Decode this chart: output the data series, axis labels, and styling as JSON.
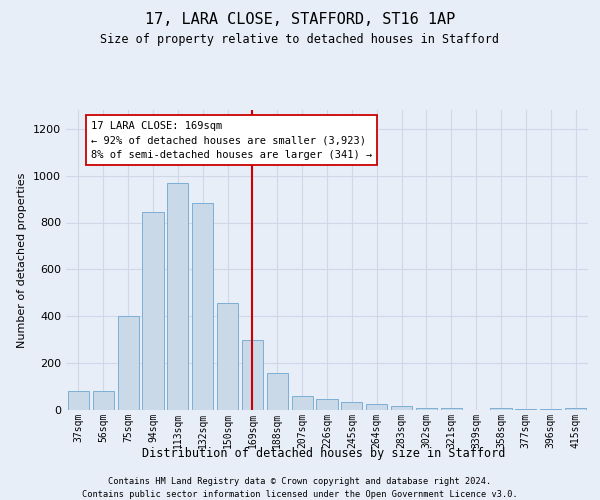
{
  "title1": "17, LARA CLOSE, STAFFORD, ST16 1AP",
  "title2": "Size of property relative to detached houses in Stafford",
  "xlabel": "Distribution of detached houses by size in Stafford",
  "ylabel": "Number of detached properties",
  "categories": [
    "37sqm",
    "56sqm",
    "75sqm",
    "94sqm",
    "113sqm",
    "132sqm",
    "150sqm",
    "169sqm",
    "188sqm",
    "207sqm",
    "226sqm",
    "245sqm",
    "264sqm",
    "283sqm",
    "302sqm",
    "321sqm",
    "339sqm",
    "358sqm",
    "377sqm",
    "396sqm",
    "415sqm"
  ],
  "values": [
    80,
    80,
    400,
    845,
    970,
    885,
    455,
    300,
    160,
    60,
    45,
    35,
    25,
    15,
    10,
    10,
    0,
    10,
    5,
    5,
    10
  ],
  "bar_color": "#c9d9e8",
  "bar_edge_color": "#7bafd4",
  "highlight_index": 7,
  "highlight_line_color": "#cc0000",
  "annotation_text": "17 LARA CLOSE: 169sqm\n← 92% of detached houses are smaller (3,923)\n8% of semi-detached houses are larger (341) →",
  "annotation_box_color": "#ffffff",
  "annotation_box_edge": "#cc0000",
  "footer1": "Contains HM Land Registry data © Crown copyright and database right 2024.",
  "footer2": "Contains public sector information licensed under the Open Government Licence v3.0.",
  "grid_color": "#d0d8e8",
  "background_color": "#e8eef8",
  "ylim": [
    0,
    1280
  ],
  "yticks": [
    0,
    200,
    400,
    600,
    800,
    1000,
    1200
  ]
}
